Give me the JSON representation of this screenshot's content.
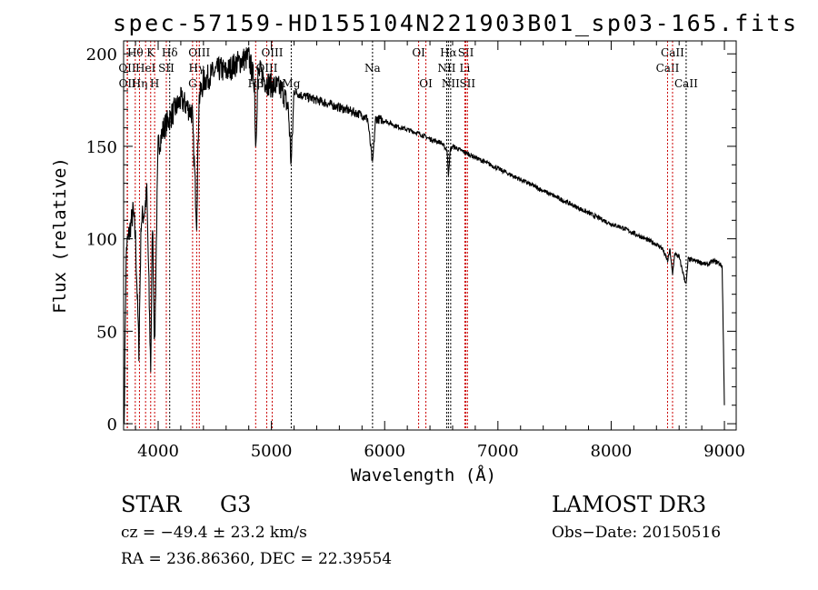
{
  "chart_data": {
    "type": "line",
    "title": "spec-57159-HD155104N221903B01_sp03-165.fits",
    "xlabel": "Wavelength (Å)",
    "ylabel": "Flux (relative)",
    "xlim": [
      3695,
      9104
    ],
    "ylim": [
      -3.4,
      207
    ],
    "xticks": [
      4000,
      5000,
      6000,
      7000,
      8000,
      9000
    ],
    "xtick_labels": [
      "4000",
      "5000",
      "6000",
      "7000",
      "8000",
      "9000"
    ],
    "yticks": [
      0,
      50,
      100,
      150,
      200
    ],
    "ytick_labels": [
      "0",
      "50",
      "100",
      "150",
      "200"
    ],
    "grid": false,
    "series": [
      {
        "name": "flux",
        "x": [
          3700,
          3710,
          3720,
          3750,
          3780,
          3800,
          3830,
          3850,
          3880,
          3900,
          3934,
          3950,
          3969,
          3990,
          4000,
          4050,
          4100,
          4150,
          4200,
          4250,
          4300,
          4340,
          4360,
          4400,
          4450,
          4500,
          4550,
          4600,
          4650,
          4700,
          4750,
          4800,
          4850,
          4861,
          4880,
          4900,
          4950,
          5000,
          5050,
          5100,
          5150,
          5175,
          5200,
          5250,
          5300,
          5400,
          5500,
          5600,
          5700,
          5800,
          5850,
          5893,
          5920,
          6000,
          6100,
          6200,
          6300,
          6400,
          6500,
          6550,
          6563,
          6580,
          6600,
          6700,
          6800,
          6900,
          7000,
          7100,
          7200,
          7300,
          7400,
          7500,
          7600,
          7700,
          7800,
          7900,
          8000,
          8100,
          8200,
          8300,
          8400,
          8450,
          8498,
          8520,
          8542,
          8560,
          8600,
          8662,
          8680,
          8750,
          8800,
          8850,
          8900,
          8950,
          8980,
          9000
        ],
        "y": [
          0,
          60,
          95,
          105,
          115,
          100,
          40,
          110,
          115,
          125,
          30,
          110,
          40,
          120,
          150,
          160,
          165,
          170,
          175,
          172,
          168,
          110,
          175,
          185,
          188,
          190,
          192,
          190,
          193,
          195,
          197,
          198,
          185,
          150,
          188,
          190,
          185,
          183,
          182,
          180,
          170,
          140,
          180,
          178,
          177,
          175,
          173,
          171,
          169,
          167,
          165,
          140,
          165,
          164,
          161,
          159,
          157,
          154,
          152,
          148,
          135,
          148,
          150,
          147,
          144,
          141,
          138,
          135,
          132,
          129,
          126,
          123,
          120,
          117,
          114,
          111,
          108,
          106,
          103,
          100,
          97,
          95,
          88,
          94,
          80,
          92,
          90,
          75,
          89,
          88,
          87,
          86,
          88,
          87,
          85,
          10
        ]
      }
    ],
    "line_markers": [
      {
        "label": "OII",
        "wavelength": 3727,
        "row": 2,
        "color": "#cc0000"
      },
      {
        "label": "OII",
        "wavelength": 3729,
        "row": 3,
        "color": "#cc0000"
      },
      {
        "label": "Hθ",
        "wavelength": 3798,
        "row": 1,
        "color": "#cc0000"
      },
      {
        "label": "Hη",
        "wavelength": 3835,
        "row": 3,
        "color": "#cc0000"
      },
      {
        "label": "HeI",
        "wavelength": 3889,
        "row": 2,
        "color": "#cc0000"
      },
      {
        "label": "K",
        "wavelength": 3934,
        "row": 1,
        "color": "#cc0000"
      },
      {
        "label": "H",
        "wavelength": 3969,
        "row": 3,
        "color": "#cc0000"
      },
      {
        "label": "SII",
        "wavelength": 4072,
        "row": 2,
        "color": "#cc0000"
      },
      {
        "label": "Hδ",
        "wavelength": 4102,
        "row": 1,
        "color": "#000000"
      },
      {
        "label": "G",
        "wavelength": 4304,
        "row": 3,
        "color": "#cc0000"
      },
      {
        "label": "Hγ",
        "wavelength": 4340,
        "row": 2,
        "color": "#cc0000"
      },
      {
        "label": "OIII",
        "wavelength": 4363,
        "row": 1,
        "color": "#cc0000"
      },
      {
        "label": "Hβ",
        "wavelength": 4861,
        "row": 3,
        "color": "#cc0000"
      },
      {
        "label": "OIII",
        "wavelength": 4959,
        "row": 2,
        "color": "#cc0000"
      },
      {
        "label": "OIII",
        "wavelength": 5007,
        "row": 1,
        "color": "#cc0000"
      },
      {
        "label": "Mg",
        "wavelength": 5175,
        "row": 3,
        "color": "#000000"
      },
      {
        "label": "Na",
        "wavelength": 5893,
        "row": 2,
        "color": "#000000"
      },
      {
        "label": "OI",
        "wavelength": 6300,
        "row": 1,
        "color": "#cc0000"
      },
      {
        "label": "OI",
        "wavelength": 6364,
        "row": 3,
        "color": "#cc0000"
      },
      {
        "label": "NII",
        "wavelength": 6548,
        "row": 2,
        "color": "#000000"
      },
      {
        "label": "Hα",
        "wavelength": 6563,
        "row": 1,
        "color": "#000000"
      },
      {
        "label": "NII",
        "wavelength": 6583,
        "row": 3,
        "color": "#000000"
      },
      {
        "label": "Li",
        "wavelength": 6708,
        "row": 2,
        "color": "#cc0000"
      },
      {
        "label": "SII",
        "wavelength": 6717,
        "row": 1,
        "color": "#cc0000"
      },
      {
        "label": "SII",
        "wavelength": 6731,
        "row": 3,
        "color": "#cc0000"
      },
      {
        "label": "CaII",
        "wavelength": 8498,
        "row": 2,
        "color": "#cc0000"
      },
      {
        "label": "CaII",
        "wavelength": 8542,
        "row": 1,
        "color": "#cc0000"
      },
      {
        "label": "CaII",
        "wavelength": 8662,
        "row": 3,
        "color": "#000000"
      }
    ]
  },
  "info": {
    "object_class": "STAR",
    "subclass": "G3",
    "survey": "LAMOST DR3",
    "redshift": "cz = −49.4 ± 23.2 km/s",
    "obs_date": "Obs−Date: 20150516",
    "coords": "RA = 236.86360, DEC =  22.39554"
  }
}
